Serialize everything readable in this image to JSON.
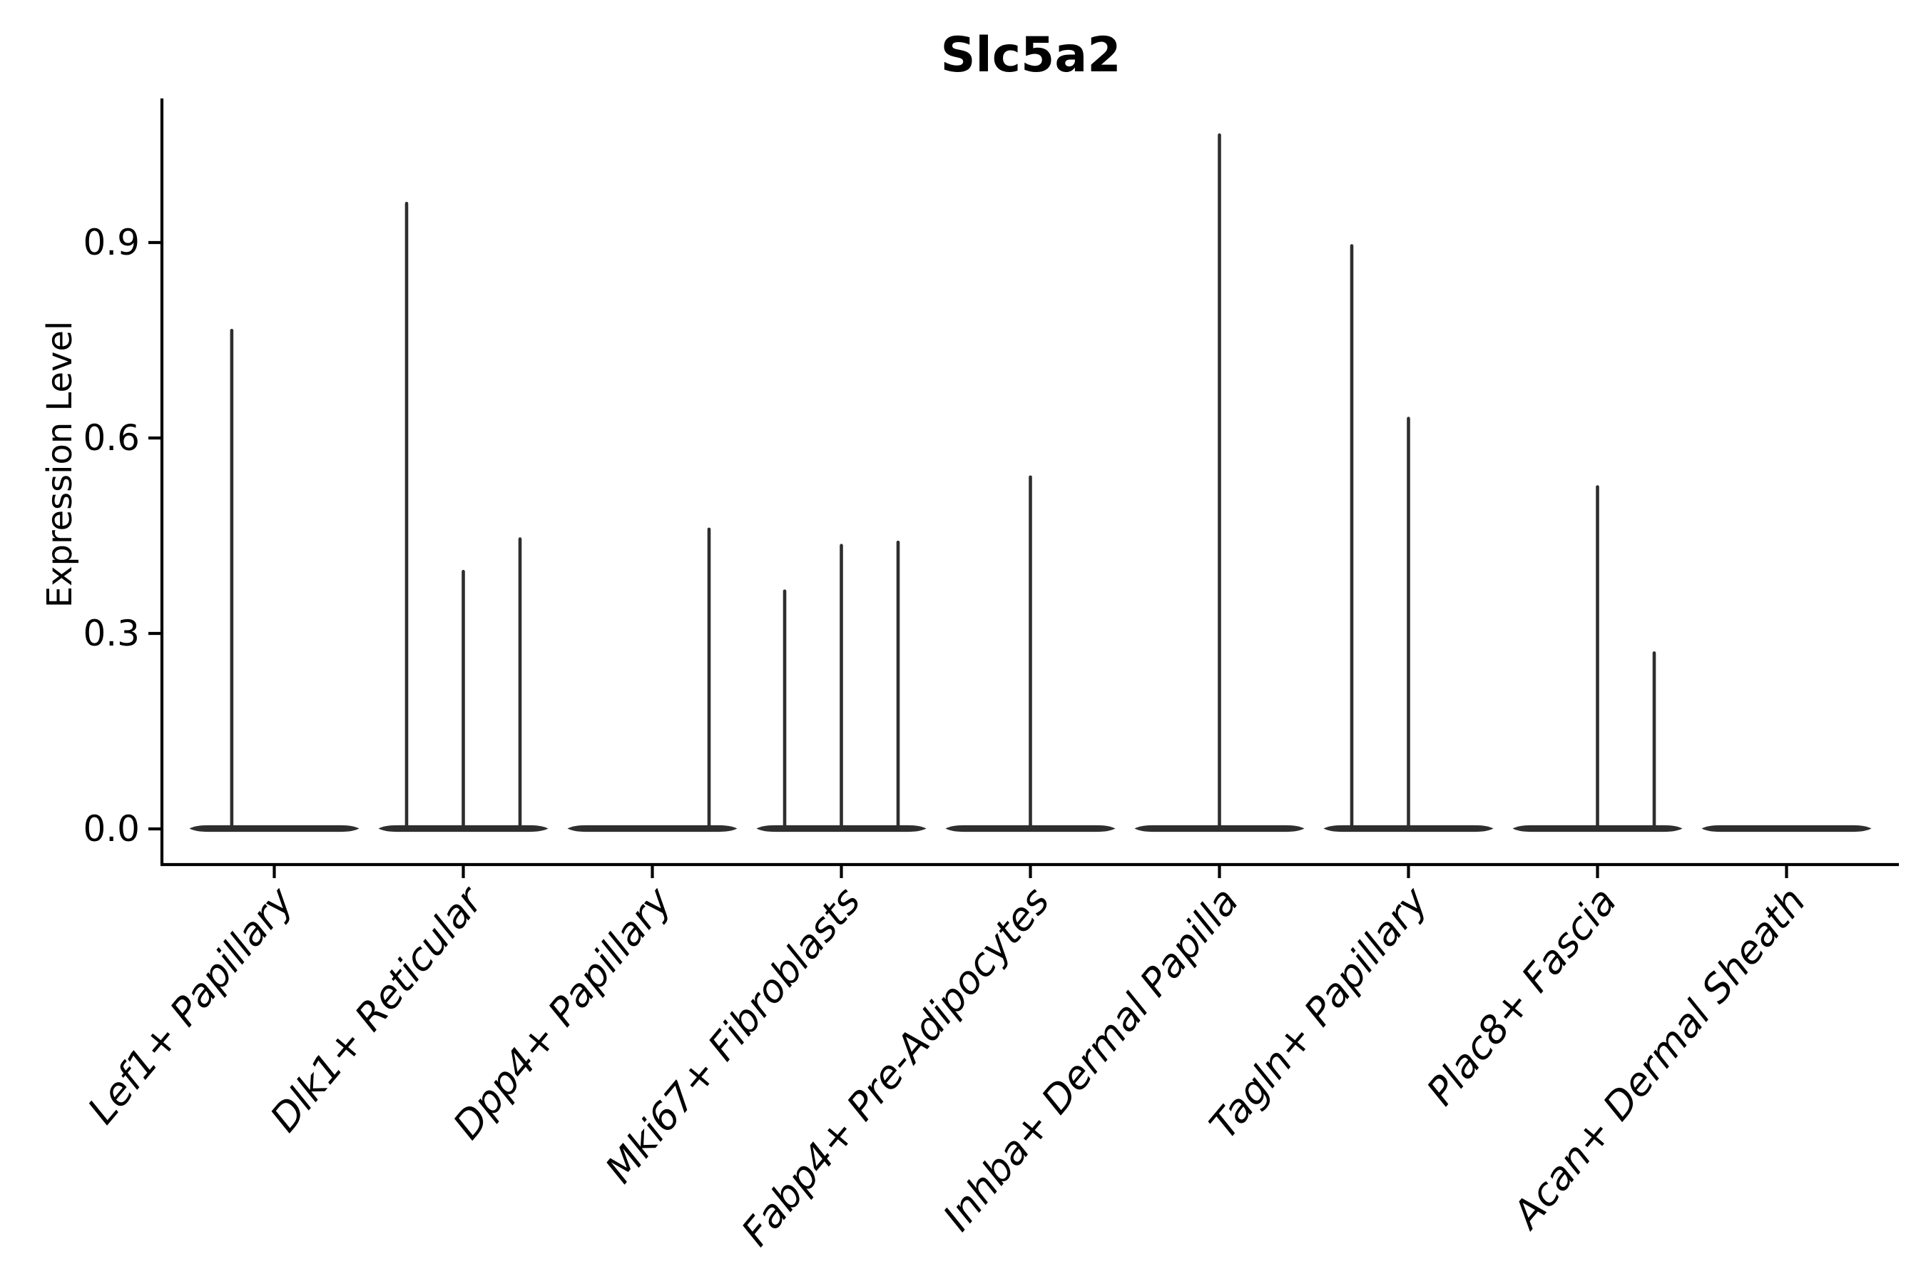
{
  "title": "Slc5a2",
  "colors": {
    "violin": "#2e2e2e",
    "axis": "#000000"
  },
  "chart_data": {
    "type": "violin",
    "title": "Slc5a2",
    "xlabel": "",
    "ylabel": "Expression Level",
    "ylim": [
      -0.05,
      1.12
    ],
    "grid": false,
    "legend": "none",
    "yticks": [
      {
        "label": "0.0",
        "value": 0.0
      },
      {
        "label": "0.3",
        "value": 0.3
      },
      {
        "label": "0.6",
        "value": 0.6
      },
      {
        "label": "0.9",
        "value": 0.9
      }
    ],
    "note": "Zero-inflated expression violins: each category shows a flat density base at 0 with thin spikes reaching the maximum expression of sub-violins; offset is the spike position as a fraction of category slot width.",
    "violins": [
      {
        "label": "Lef1+ Papillary",
        "spikes": [
          {
            "offset": -0.225,
            "value": 0.765
          }
        ]
      },
      {
        "label": "Dlk1+ Reticular",
        "spikes": [
          {
            "offset": -0.3,
            "value": 0.96
          },
          {
            "offset": 0.0,
            "value": 0.395
          },
          {
            "offset": 0.3,
            "value": 0.445
          }
        ]
      },
      {
        "label": "Dpp4+ Papillary",
        "spikes": [
          {
            "offset": 0.3,
            "value": 0.46
          }
        ]
      },
      {
        "label": "Mki67+ Fibroblasts",
        "spikes": [
          {
            "offset": -0.3,
            "value": 0.365
          },
          {
            "offset": 0.0,
            "value": 0.435
          },
          {
            "offset": 0.3,
            "value": 0.44
          }
        ]
      },
      {
        "label": "Fabp4+ Pre-Adipocytes",
        "spikes": [
          {
            "offset": 0.0,
            "value": 0.54
          }
        ]
      },
      {
        "label": "Inhba+ Dermal Papilla",
        "spikes": [
          {
            "offset": 0.0,
            "value": 1.065
          }
        ]
      },
      {
        "label": "Tagln+ Papillary",
        "spikes": [
          {
            "offset": -0.3,
            "value": 0.895
          },
          {
            "offset": 0.0,
            "value": 0.63
          }
        ]
      },
      {
        "label": "Plac8+ Fascia",
        "spikes": [
          {
            "offset": 0.0,
            "value": 0.525
          },
          {
            "offset": 0.3,
            "value": 0.27
          }
        ]
      },
      {
        "label": "Acan+ Dermal Sheath",
        "spikes": []
      }
    ]
  }
}
